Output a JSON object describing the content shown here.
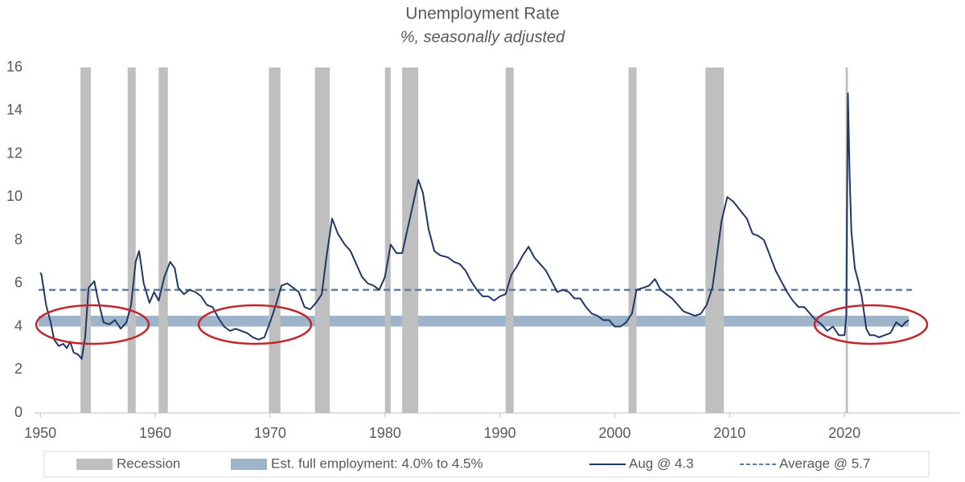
{
  "chart_data": {
    "type": "line",
    "title": "Unemployment Rate",
    "subtitle": "%, seasonally adjusted",
    "xlim": [
      1949.5,
      2030
    ],
    "xticks": [
      1950,
      1960,
      1970,
      1980,
      1990,
      2000,
      2010,
      2020
    ],
    "ylim": [
      0,
      16
    ],
    "yticks": [
      0,
      2,
      4,
      6,
      8,
      10,
      12,
      14,
      16
    ],
    "recessions": {
      "name": "Recession",
      "color": "#bfbfbf",
      "ranges": [
        [
          1953.5,
          1954.4
        ],
        [
          1957.6,
          1958.3
        ],
        [
          1960.3,
          1961.1
        ],
        [
          1969.9,
          1970.9
        ],
        [
          1973.9,
          1975.2
        ],
        [
          1980.0,
          1980.5
        ],
        [
          1981.5,
          1982.9
        ],
        [
          1990.5,
          1991.2
        ],
        [
          2001.2,
          2001.9
        ],
        [
          2007.9,
          2009.5
        ],
        [
          2020.1,
          2020.3
        ]
      ]
    },
    "full_employment": {
      "name": "Est. full employment: 4.0% to 4.5%",
      "color": "#9db4cb",
      "range": [
        4.0,
        4.5
      ]
    },
    "average": {
      "name": "Average @ 5.7",
      "color": "#5b7fa6",
      "value": 5.7
    },
    "x": [
      1950.0,
      1950.1,
      1950.5,
      1950.9,
      1951.2,
      1951.6,
      1952.0,
      1952.3,
      1952.6,
      1952.9,
      1953.3,
      1953.6,
      1953.9,
      1954.2,
      1954.7,
      1955.0,
      1955.5,
      1956.0,
      1956.5,
      1957.0,
      1957.5,
      1957.9,
      1958.3,
      1958.6,
      1959.0,
      1959.5,
      1959.9,
      1960.3,
      1960.8,
      1961.3,
      1961.7,
      1962.0,
      1962.5,
      1963.0,
      1963.5,
      1964.0,
      1964.5,
      1965.0,
      1965.5,
      1966.0,
      1966.5,
      1967.0,
      1967.5,
      1968.0,
      1968.5,
      1969.0,
      1969.5,
      1970.0,
      1970.5,
      1971.0,
      1971.5,
      1972.0,
      1972.5,
      1973.0,
      1973.5,
      1974.0,
      1974.5,
      1974.9,
      1975.4,
      1975.9,
      1976.5,
      1977.0,
      1977.5,
      1978.0,
      1978.5,
      1979.0,
      1979.5,
      1980.0,
      1980.5,
      1981.0,
      1981.5,
      1982.0,
      1982.5,
      1982.9,
      1983.3,
      1983.8,
      1984.3,
      1984.8,
      1985.5,
      1986.0,
      1986.5,
      1987.0,
      1987.5,
      1988.0,
      1988.5,
      1989.0,
      1989.5,
      1990.0,
      1990.5,
      1991.0,
      1991.5,
      1992.0,
      1992.5,
      1993.0,
      1993.5,
      1994.0,
      1994.5,
      1995.0,
      1995.5,
      1996.0,
      1996.5,
      1997.0,
      1997.5,
      1998.0,
      1998.5,
      1999.0,
      1999.5,
      2000.0,
      2000.5,
      2001.0,
      2001.5,
      2001.9,
      2002.5,
      2003.0,
      2003.5,
      2004.0,
      2004.5,
      2005.0,
      2005.5,
      2006.0,
      2006.5,
      2007.0,
      2007.5,
      2008.0,
      2008.5,
      2008.9,
      2009.3,
      2009.8,
      2010.3,
      2010.9,
      2011.5,
      2012.0,
      2012.5,
      2013.0,
      2013.5,
      2014.0,
      2014.5,
      2015.0,
      2015.5,
      2016.0,
      2016.5,
      2017.0,
      2017.5,
      2018.0,
      2018.5,
      2019.0,
      2019.5,
      2020.0,
      2020.15,
      2020.3,
      2020.45,
      2020.6,
      2020.9,
      2021.2,
      2021.5,
      2021.9,
      2022.2,
      2022.6,
      2023.0,
      2023.5,
      2024.0,
      2024.5,
      2025.0,
      2025.3,
      2025.6
    ],
    "series": [
      {
        "name": "Aug @ 4.3",
        "color": "#1f3864",
        "values": [
          6.5,
          6.4,
          5.0,
          4.2,
          3.4,
          3.1,
          3.2,
          3.0,
          3.3,
          2.8,
          2.7,
          2.5,
          3.5,
          5.8,
          6.1,
          5.3,
          4.2,
          4.1,
          4.3,
          3.9,
          4.2,
          5.0,
          7.0,
          7.5,
          6.0,
          5.1,
          5.6,
          5.2,
          6.3,
          7.0,
          6.7,
          5.8,
          5.5,
          5.7,
          5.6,
          5.4,
          5.0,
          4.9,
          4.4,
          4.0,
          3.8,
          3.9,
          3.8,
          3.7,
          3.5,
          3.4,
          3.5,
          4.2,
          5.0,
          5.9,
          6.0,
          5.8,
          5.6,
          4.9,
          4.8,
          5.1,
          5.5,
          7.2,
          9.0,
          8.3,
          7.8,
          7.5,
          6.9,
          6.3,
          6.0,
          5.9,
          5.7,
          6.3,
          7.8,
          7.4,
          7.4,
          8.6,
          9.8,
          10.8,
          10.2,
          8.5,
          7.5,
          7.3,
          7.2,
          7.0,
          6.9,
          6.6,
          6.1,
          5.7,
          5.4,
          5.4,
          5.2,
          5.4,
          5.5,
          6.4,
          6.8,
          7.3,
          7.7,
          7.2,
          6.9,
          6.6,
          6.1,
          5.6,
          5.7,
          5.6,
          5.3,
          5.3,
          4.9,
          4.6,
          4.5,
          4.3,
          4.3,
          4.0,
          4.0,
          4.2,
          4.6,
          5.7,
          5.8,
          5.9,
          6.2,
          5.7,
          5.5,
          5.3,
          5.0,
          4.7,
          4.6,
          4.5,
          4.6,
          5.0,
          5.8,
          7.3,
          8.9,
          10.0,
          9.8,
          9.4,
          9.0,
          8.3,
          8.2,
          8.0,
          7.3,
          6.6,
          6.1,
          5.6,
          5.2,
          4.9,
          4.9,
          4.6,
          4.3,
          4.1,
          3.8,
          4.0,
          3.6,
          3.6,
          4.4,
          14.8,
          11.0,
          8.4,
          6.7,
          6.1,
          5.4,
          3.9,
          3.6,
          3.6,
          3.5,
          3.6,
          3.7,
          4.2,
          4.0,
          4.2,
          4.3
        ]
      }
    ]
  }
}
